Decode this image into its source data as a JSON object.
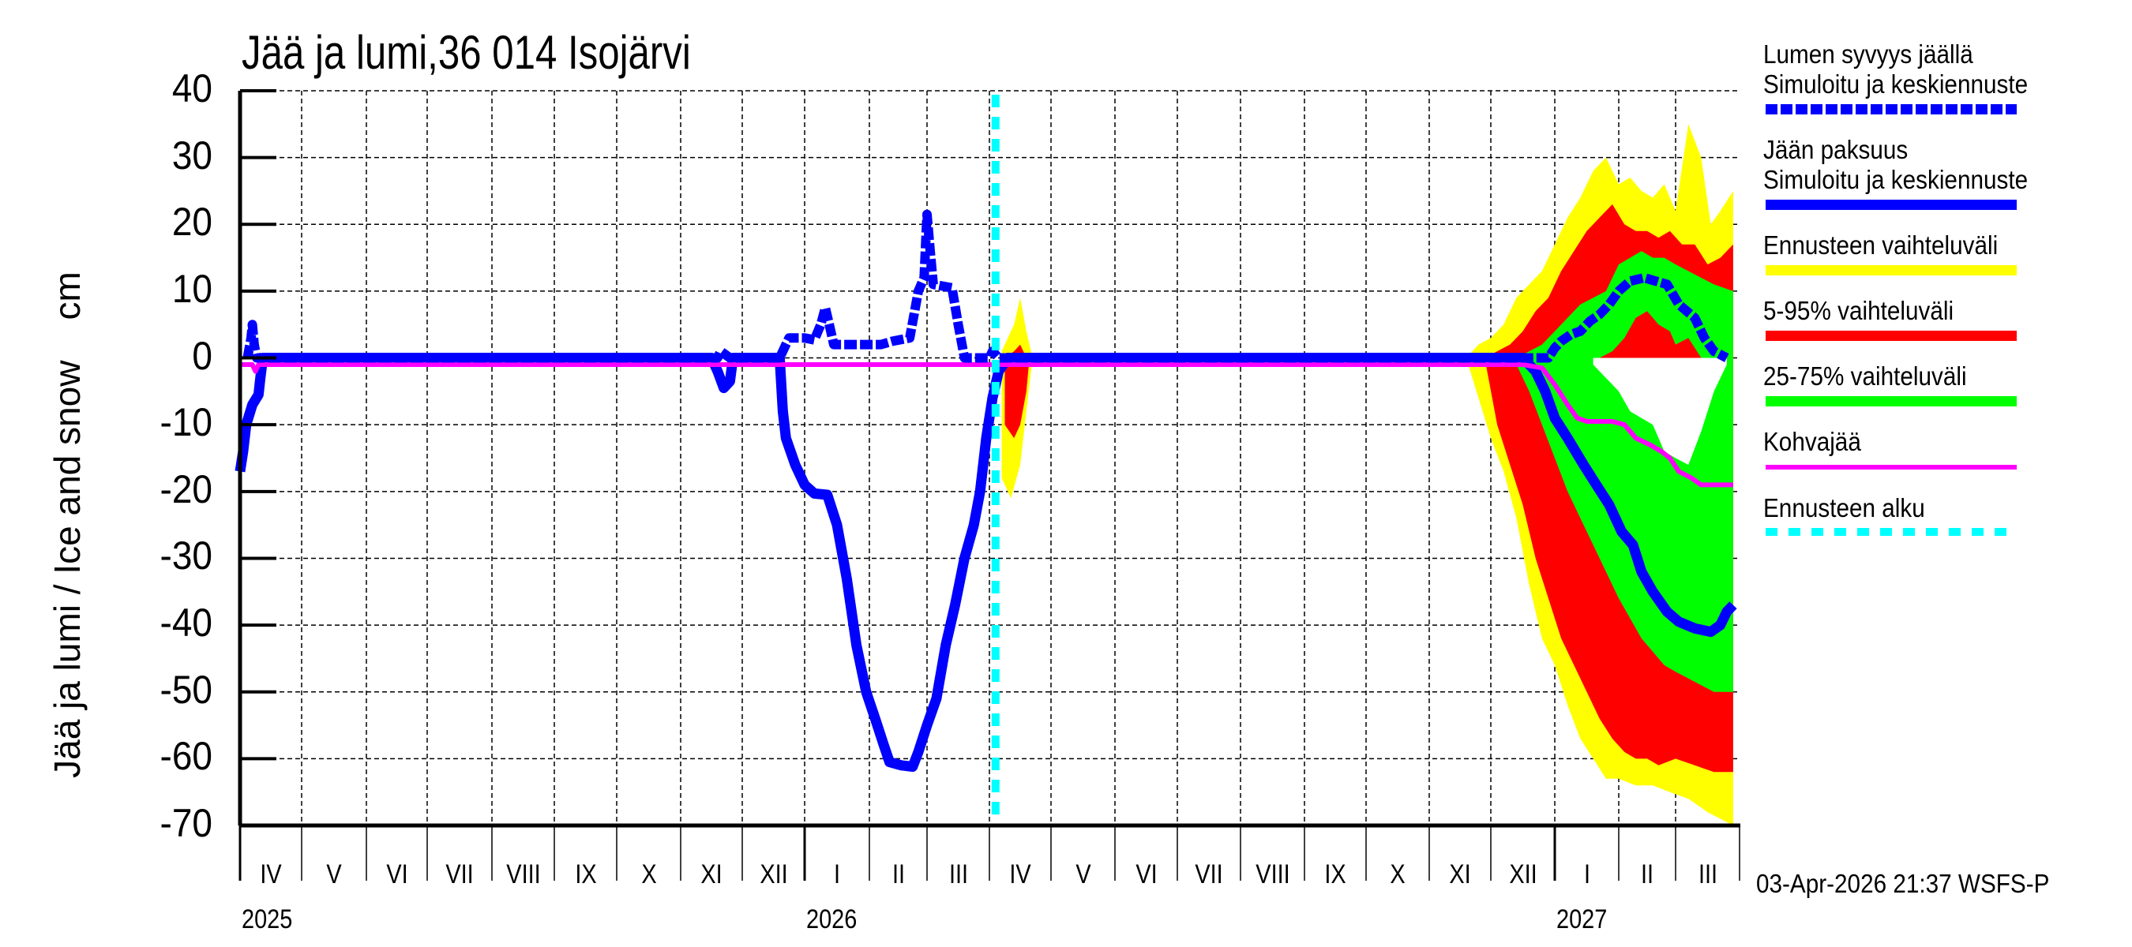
{
  "title": "Jää ja lumi,36 014 Isojärvi",
  "timestamp": "03-Apr-2026 21:37 WSFS-P",
  "colors": {
    "snow": "#0000ff",
    "ice": "#0000ff",
    "forecast_range": "#ffff00",
    "p5_95": "#ff0000",
    "p25_75": "#00ff00",
    "slush_ice": "#ff00ff",
    "forecast_start": "#00ffff",
    "grid": "#000000"
  },
  "legend": [
    {
      "line1": "Lumen syvyys jäällä",
      "line2": "Simuloitu ja keskiennuste",
      "style": "dashed-blue"
    },
    {
      "line1": "Jään paksuus",
      "line2": "Simuloitu ja keskiennuste",
      "style": "solid-blue"
    },
    {
      "line1": "Ennusteen vaihteluväli",
      "style": "yellow"
    },
    {
      "line1": "5-95% vaihteluväli",
      "style": "red"
    },
    {
      "line1": "25-75% vaihteluväli",
      "style": "green"
    },
    {
      "line1": "Kohvajää",
      "style": "magenta"
    },
    {
      "line1": "Ennusteen alku",
      "style": "dashed-cyan"
    }
  ],
  "chart_data": {
    "type": "line",
    "title": "Jää ja lumi,36 014 Isojärvi",
    "xlabel": "",
    "ylabel": "Jää ja lumi / Ice and snow    cm",
    "ylim": [
      -70,
      40
    ],
    "yticks": [
      40,
      30,
      20,
      10,
      0,
      -10,
      -20,
      -30,
      -40,
      -50,
      -60,
      -70
    ],
    "grid": true,
    "legend_position": "right",
    "x_unit": "months since 2025-04-01",
    "x_range": [
      0,
      24
    ],
    "x_month_labels": [
      "IV",
      "V",
      "VI",
      "VII",
      "VIII",
      "IX",
      "X",
      "XI",
      "XII",
      "I",
      "II",
      "III",
      "IV",
      "V",
      "VI",
      "VII",
      "VIII",
      "IX",
      "X",
      "XI",
      "XII",
      "I",
      "II",
      "III"
    ],
    "x_year_labels": [
      {
        "label": "2025",
        "at": 0
      },
      {
        "label": "2026",
        "at": 9
      },
      {
        "label": "2027",
        "at": 21
      }
    ],
    "forecast_start": 12.1,
    "series": [
      {
        "name": "Lumen syvyys jäällä (Simuloitu ja keskiennuste)",
        "style": "dashed",
        "points": [
          [
            0.12,
            0
          ],
          [
            0.18,
            3
          ],
          [
            0.2,
            5
          ],
          [
            0.23,
            2
          ],
          [
            0.27,
            0
          ],
          [
            4,
            0
          ],
          [
            7.6,
            0
          ],
          [
            7.65,
            1
          ],
          [
            7.8,
            0
          ],
          [
            8.6,
            0
          ],
          [
            8.7,
            2
          ],
          [
            8.75,
            3
          ],
          [
            9.0,
            3
          ],
          [
            9.15,
            2.7
          ],
          [
            9.25,
            5
          ],
          [
            9.32,
            7.5
          ],
          [
            9.38,
            5
          ],
          [
            9.45,
            2
          ],
          [
            10.2,
            2
          ],
          [
            10.4,
            2.5
          ],
          [
            10.7,
            3
          ],
          [
            10.85,
            10
          ],
          [
            10.95,
            12
          ],
          [
            11.0,
            21.5
          ],
          [
            11.05,
            16
          ],
          [
            11.1,
            11
          ],
          [
            11.4,
            10.5
          ],
          [
            11.5,
            5
          ],
          [
            11.6,
            0
          ],
          [
            12.0,
            0
          ],
          [
            12.05,
            1
          ],
          [
            12.15,
            0
          ],
          [
            20.9,
            0
          ],
          [
            21.0,
            1.5
          ],
          [
            21.1,
            2.5
          ],
          [
            21.25,
            3.5
          ],
          [
            21.4,
            4
          ],
          [
            21.55,
            5.5
          ],
          [
            21.7,
            6.5
          ],
          [
            21.85,
            8
          ],
          [
            22.0,
            10
          ],
          [
            22.2,
            11.5
          ],
          [
            22.45,
            12
          ],
          [
            22.65,
            11.5
          ],
          [
            22.85,
            11
          ],
          [
            23.05,
            8
          ],
          [
            23.3,
            6
          ],
          [
            23.45,
            3
          ],
          [
            23.6,
            1
          ],
          [
            23.8,
            0
          ]
        ]
      },
      {
        "name": "Jään paksuus (Simuloitu ja keskiennuste)",
        "style": "solid",
        "points": [
          [
            0,
            -17
          ],
          [
            0.05,
            -14
          ],
          [
            0.1,
            -10
          ],
          [
            0.2,
            -7
          ],
          [
            0.3,
            -5.5
          ],
          [
            0.33,
            -3
          ],
          [
            0.37,
            0
          ],
          [
            4,
            0
          ],
          [
            7.5,
            0
          ],
          [
            7.6,
            -2
          ],
          [
            7.7,
            -4.5
          ],
          [
            7.8,
            -3.5
          ],
          [
            7.85,
            0
          ],
          [
            8.6,
            0
          ],
          [
            8.65,
            -8
          ],
          [
            8.7,
            -12
          ],
          [
            8.85,
            -16
          ],
          [
            9.0,
            -19
          ],
          [
            9.15,
            -20.3
          ],
          [
            9.35,
            -20.5
          ],
          [
            9.5,
            -25
          ],
          [
            9.65,
            -33
          ],
          [
            9.8,
            -43
          ],
          [
            9.95,
            -50
          ],
          [
            10.1,
            -54
          ],
          [
            10.25,
            -58
          ],
          [
            10.35,
            -60.5
          ],
          [
            10.55,
            -61
          ],
          [
            10.75,
            -61.2
          ],
          [
            10.85,
            -59
          ],
          [
            11.0,
            -55
          ],
          [
            11.15,
            -51
          ],
          [
            11.3,
            -43
          ],
          [
            11.45,
            -37
          ],
          [
            11.6,
            -30
          ],
          [
            11.75,
            -25
          ],
          [
            11.85,
            -20
          ],
          [
            11.95,
            -12
          ],
          [
            12.05,
            -6
          ],
          [
            12.15,
            -2
          ],
          [
            12.3,
            0
          ],
          [
            20.5,
            0
          ],
          [
            20.7,
            -2
          ],
          [
            20.85,
            -5
          ],
          [
            21.0,
            -9
          ],
          [
            21.2,
            -12
          ],
          [
            21.45,
            -16
          ],
          [
            21.65,
            -19
          ],
          [
            21.85,
            -22
          ],
          [
            22.05,
            -26
          ],
          [
            22.25,
            -28
          ],
          [
            22.4,
            -32
          ],
          [
            22.6,
            -35
          ],
          [
            22.85,
            -38
          ],
          [
            23.05,
            -39.5
          ],
          [
            23.3,
            -40.5
          ],
          [
            23.55,
            -41
          ],
          [
            23.7,
            -40
          ],
          [
            23.8,
            -38
          ],
          [
            23.9,
            -37
          ]
        ]
      },
      {
        "name": "Kohvajää",
        "style": "solid",
        "points": [
          [
            0,
            -1
          ],
          [
            0.2,
            -1
          ],
          [
            0.25,
            -2
          ],
          [
            0.3,
            -1
          ],
          [
            20.5,
            -1
          ],
          [
            20.8,
            -1.5
          ],
          [
            21.0,
            -4
          ],
          [
            21.2,
            -7
          ],
          [
            21.35,
            -9
          ],
          [
            21.5,
            -9.5
          ],
          [
            21.9,
            -9.5
          ],
          [
            22.1,
            -10
          ],
          [
            22.3,
            -12
          ],
          [
            22.55,
            -13
          ],
          [
            22.75,
            -14
          ],
          [
            22.9,
            -15
          ],
          [
            23.05,
            -17
          ],
          [
            23.25,
            -18
          ],
          [
            23.4,
            -19
          ],
          [
            23.9,
            -19
          ]
        ]
      }
    ],
    "bands": [
      {
        "name": "Ennusteen vaihteluväli",
        "upper": [
          [
            12.2,
            1
          ],
          [
            12.4,
            5
          ],
          [
            12.5,
            9
          ],
          [
            12.6,
            4
          ],
          [
            12.7,
            0
          ],
          [
            19.6,
            0
          ],
          [
            19.8,
            2
          ],
          [
            20.0,
            3
          ],
          [
            20.2,
            5
          ],
          [
            20.4,
            9
          ],
          [
            20.6,
            11
          ],
          [
            20.8,
            13
          ],
          [
            21.0,
            17
          ],
          [
            21.2,
            21
          ],
          [
            21.4,
            24
          ],
          [
            21.6,
            28
          ],
          [
            21.8,
            30
          ],
          [
            22.0,
            26
          ],
          [
            22.2,
            27
          ],
          [
            22.4,
            25
          ],
          [
            22.6,
            24
          ],
          [
            22.8,
            26
          ],
          [
            23.0,
            22
          ],
          [
            23.2,
            35
          ],
          [
            23.4,
            30
          ],
          [
            23.55,
            20
          ],
          [
            23.7,
            22
          ],
          [
            23.9,
            25
          ]
        ],
        "lower": [
          [
            12.2,
            -18
          ],
          [
            12.35,
            -21
          ],
          [
            12.5,
            -16
          ],
          [
            12.6,
            -8
          ],
          [
            12.7,
            0
          ],
          [
            19.6,
            0
          ],
          [
            19.8,
            -6
          ],
          [
            20.0,
            -12
          ],
          [
            20.2,
            -17
          ],
          [
            20.4,
            -24
          ],
          [
            20.6,
            -34
          ],
          [
            20.8,
            -42
          ],
          [
            21.0,
            -46
          ],
          [
            21.2,
            -52
          ],
          [
            21.4,
            -57
          ],
          [
            21.6,
            -60
          ],
          [
            21.8,
            -63
          ],
          [
            22.0,
            -63
          ],
          [
            22.3,
            -64
          ],
          [
            22.6,
            -64
          ],
          [
            22.9,
            -65
          ],
          [
            23.2,
            -66
          ],
          [
            23.5,
            -68
          ],
          [
            23.9,
            -70
          ]
        ]
      },
      {
        "name": "5-95% vaihteluväli",
        "upper": [
          [
            12.25,
            0
          ],
          [
            12.4,
            1
          ],
          [
            12.5,
            2
          ],
          [
            12.6,
            0
          ],
          [
            19.9,
            0
          ],
          [
            20.1,
            1
          ],
          [
            20.3,
            2
          ],
          [
            20.5,
            4
          ],
          [
            20.7,
            7
          ],
          [
            20.9,
            9
          ],
          [
            21.1,
            13
          ],
          [
            21.3,
            16
          ],
          [
            21.5,
            19
          ],
          [
            21.7,
            21
          ],
          [
            21.9,
            23
          ],
          [
            22.1,
            20
          ],
          [
            22.3,
            19
          ],
          [
            22.5,
            19
          ],
          [
            22.7,
            18
          ],
          [
            22.9,
            19
          ],
          [
            23.1,
            17
          ],
          [
            23.3,
            17
          ],
          [
            23.5,
            14
          ],
          [
            23.7,
            15
          ],
          [
            23.9,
            17
          ]
        ],
        "lower": [
          [
            12.25,
            -10
          ],
          [
            12.4,
            -12
          ],
          [
            12.5,
            -10
          ],
          [
            12.6,
            -5
          ],
          [
            12.65,
            0
          ],
          [
            19.9,
            0
          ],
          [
            20.1,
            -10
          ],
          [
            20.3,
            -16
          ],
          [
            20.5,
            -22
          ],
          [
            20.7,
            -30
          ],
          [
            20.9,
            -36
          ],
          [
            21.1,
            -42
          ],
          [
            21.3,
            -46
          ],
          [
            21.5,
            -50
          ],
          [
            21.7,
            -54
          ],
          [
            21.9,
            -57
          ],
          [
            22.1,
            -59
          ],
          [
            22.3,
            -60
          ],
          [
            22.5,
            -60
          ],
          [
            22.7,
            -61
          ],
          [
            23.0,
            -60
          ],
          [
            23.3,
            -61
          ],
          [
            23.6,
            -62
          ],
          [
            23.9,
            -62
          ]
        ]
      },
      {
        "name": "25-75% vaihteluväli",
        "upper": [
          [
            20.4,
            0
          ],
          [
            20.6,
            1
          ],
          [
            20.8,
            2
          ],
          [
            21.0,
            4
          ],
          [
            21.2,
            6
          ],
          [
            21.4,
            8
          ],
          [
            21.6,
            9
          ],
          [
            21.8,
            10
          ],
          [
            22.0,
            14
          ],
          [
            22.2,
            15
          ],
          [
            22.4,
            16
          ],
          [
            22.6,
            15
          ],
          [
            22.8,
            15
          ],
          [
            23.0,
            14
          ],
          [
            23.2,
            13
          ],
          [
            23.4,
            12
          ],
          [
            23.6,
            11
          ],
          [
            23.9,
            10
          ]
        ],
        "lower": [
          [
            20.4,
            -1
          ],
          [
            20.6,
            -5
          ],
          [
            20.8,
            -10
          ],
          [
            21.0,
            -15
          ],
          [
            21.2,
            -20
          ],
          [
            21.4,
            -24
          ],
          [
            21.6,
            -28
          ],
          [
            21.8,
            -32
          ],
          [
            22.0,
            -36
          ],
          [
            22.2,
            -39
          ],
          [
            22.4,
            -42
          ],
          [
            22.6,
            -44
          ],
          [
            22.8,
            -46
          ],
          [
            23.0,
            -47
          ],
          [
            23.2,
            -48
          ],
          [
            23.4,
            -49
          ],
          [
            23.6,
            -50
          ],
          [
            23.9,
            -50
          ]
        ]
      },
      {
        "name": "5-95% inner (white gap lower bound of upper lobe)",
        "note": "the 25-75% lower edge above zero reveals red; white gap below zero between 5-95 upper-negative envelope",
        "upper_white": [
          [
            21.6,
            -1
          ],
          [
            21.8,
            -3
          ],
          [
            22.0,
            -5
          ],
          [
            22.2,
            -8
          ],
          [
            22.4,
            -9
          ],
          [
            22.6,
            -10
          ],
          [
            22.8,
            -14
          ],
          [
            23.0,
            -15
          ],
          [
            23.2,
            -16
          ],
          [
            23.4,
            -11
          ],
          [
            23.6,
            -5
          ],
          [
            23.8,
            -1
          ]
        ]
      }
    ],
    "inner_red_lobe": [
      [
        21.7,
        0
      ],
      [
        21.9,
        1
      ],
      [
        22.1,
        3
      ],
      [
        22.3,
        6
      ],
      [
        22.5,
        7
      ],
      [
        22.7,
        5
      ],
      [
        22.9,
        4
      ],
      [
        23.0,
        2
      ],
      [
        23.2,
        3
      ],
      [
        23.4,
        0
      ]
    ]
  }
}
